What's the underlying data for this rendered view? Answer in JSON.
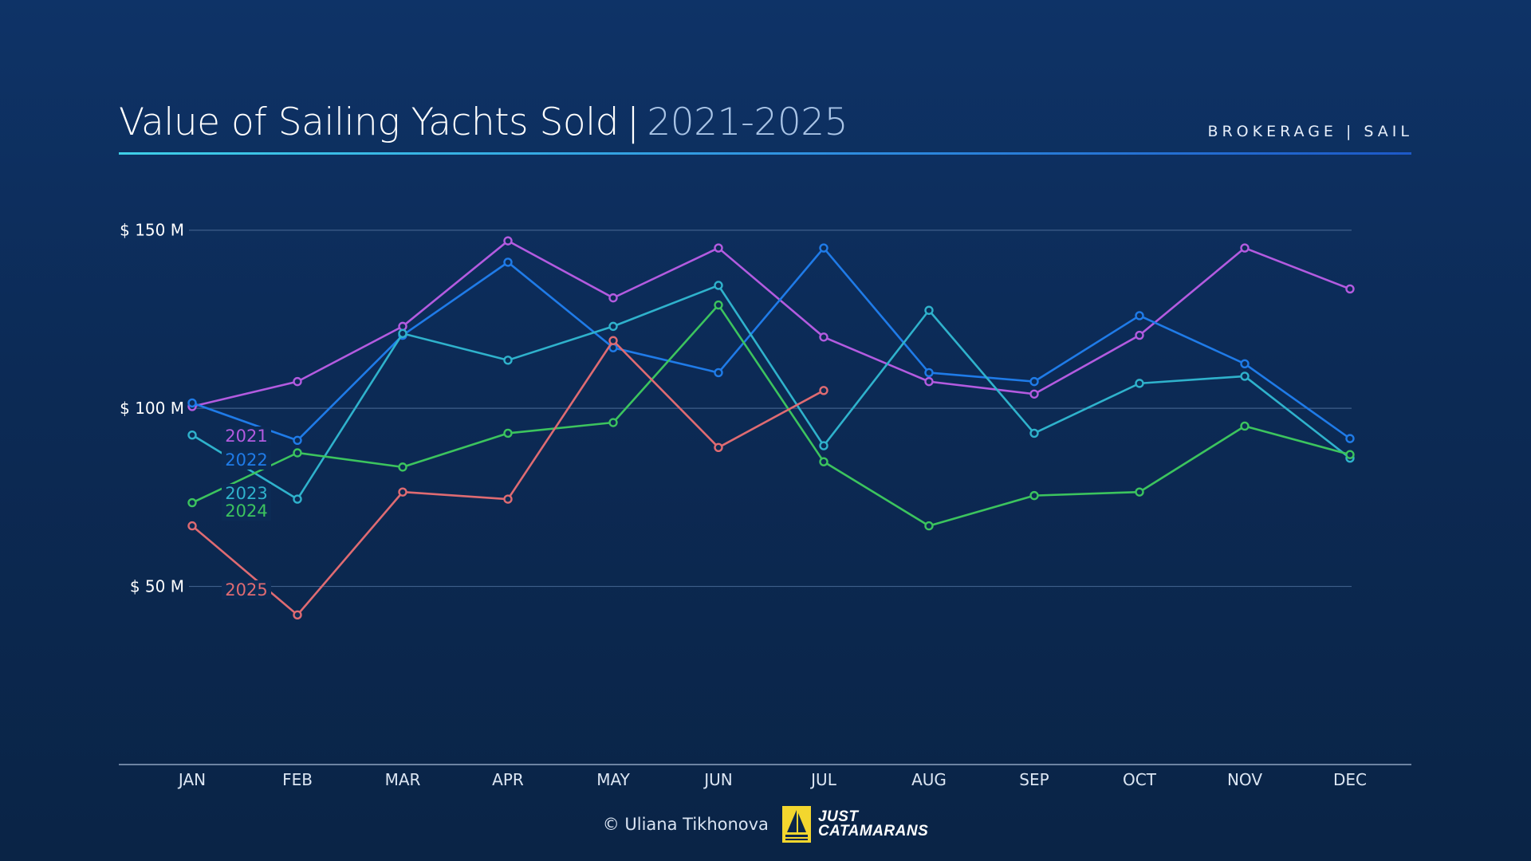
{
  "header": {
    "title_main": "Value of Sailing Yachts Sold",
    "title_sep": "|",
    "title_years": "2021-2025",
    "kicker": "BROKERAGE | SAIL"
  },
  "footer": {
    "credit": "© Uliana Tikhonova",
    "logo_line1": "JUST",
    "logo_line2": "CATAMARANS"
  },
  "chart_data": {
    "type": "line",
    "title": "Value of Sailing Yachts Sold | 2021-2025",
    "categories": [
      "JAN",
      "FEB",
      "MAR",
      "APR",
      "MAY",
      "JUN",
      "JUL",
      "AUG",
      "SEP",
      "OCT",
      "NOV",
      "DEC"
    ],
    "ylim": [
      0,
      175
    ],
    "y_ticks": [
      {
        "value": 50,
        "label": "$ 50 M"
      },
      {
        "value": 100,
        "label": "$ 100 M"
      },
      {
        "value": 150,
        "label": "$ 150 M"
      }
    ],
    "grid": true,
    "legend": "inline labels at series start",
    "series": [
      {
        "name": "2021",
        "color": "#b35be0",
        "values": [
          100.5,
          107.5,
          123,
          147,
          131,
          145,
          120,
          107.5,
          104,
          120.5,
          145,
          133.5
        ]
      },
      {
        "name": "2022",
        "color": "#1f7be8",
        "values": [
          101.5,
          91,
          120.5,
          141,
          117,
          110,
          145,
          110,
          107.5,
          126,
          112.5,
          91.5
        ]
      },
      {
        "name": "2023",
        "color": "#2fb2cc",
        "values": [
          92.5,
          74.5,
          121,
          113.5,
          123,
          134.5,
          89.5,
          127.5,
          93,
          107,
          109,
          86
        ]
      },
      {
        "name": "2024",
        "color": "#3cc45e",
        "values": [
          73.5,
          87.5,
          83.5,
          93,
          96,
          129,
          85,
          67,
          75.5,
          76.5,
          95,
          87
        ]
      },
      {
        "name": "2025",
        "color": "#df6b72",
        "values": [
          67,
          42,
          76.5,
          74.5,
          119,
          89,
          105,
          null,
          null,
          null,
          null,
          null
        ]
      }
    ]
  },
  "colors": {
    "background_top": "#0e3367",
    "background_bottom": "#0a2446",
    "accent_cyan": "#3fd0e8",
    "logo_yellow": "#f3d62e"
  }
}
